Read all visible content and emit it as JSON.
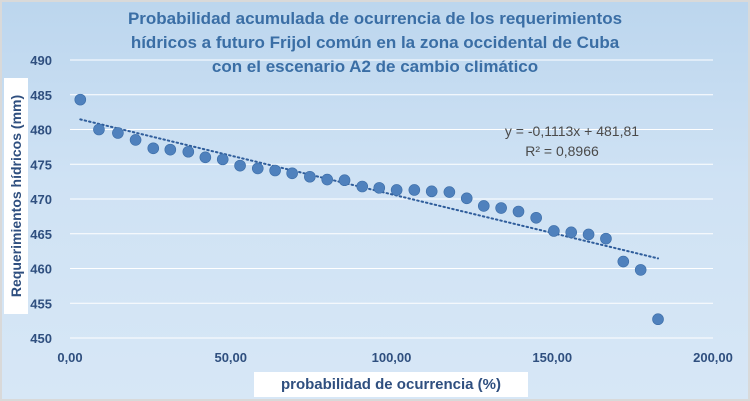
{
  "chart_data": {
    "type": "scatter",
    "title_lines": [
      "Probabilidad acumulada de ocurrencia de los requerimientos",
      "hídricos a futuro Frijol común en la zona occidental de Cuba",
      "con el escenario A2 de cambio climático"
    ],
    "xlabel": "probabilidad  de ocurrencia (%)",
    "ylabel": "Requerimientos hídricos (mm)",
    "xlim": [
      0,
      200
    ],
    "ylim": [
      450,
      490
    ],
    "x_ticks": [
      "0,00",
      "50,00",
      "100,00",
      "150,00",
      "200,00"
    ],
    "y_ticks": [
      "450",
      "455",
      "460",
      "465",
      "470",
      "475",
      "480",
      "485",
      "490"
    ],
    "grid": "horizontal",
    "points": [
      {
        "x": 3.2,
        "y": 484.3
      },
      {
        "x": 9.0,
        "y": 480.0
      },
      {
        "x": 14.9,
        "y": 479.5
      },
      {
        "x": 20.4,
        "y": 478.5
      },
      {
        "x": 25.9,
        "y": 477.3
      },
      {
        "x": 31.2,
        "y": 477.1
      },
      {
        "x": 36.8,
        "y": 476.8
      },
      {
        "x": 42.1,
        "y": 476.0
      },
      {
        "x": 47.5,
        "y": 475.7
      },
      {
        "x": 52.9,
        "y": 474.8
      },
      {
        "x": 58.4,
        "y": 474.4
      },
      {
        "x": 63.8,
        "y": 474.1
      },
      {
        "x": 69.1,
        "y": 473.7
      },
      {
        "x": 74.6,
        "y": 473.2
      },
      {
        "x": 80.0,
        "y": 472.8
      },
      {
        "x": 85.4,
        "y": 472.7
      },
      {
        "x": 90.9,
        "y": 471.8
      },
      {
        "x": 96.2,
        "y": 471.6
      },
      {
        "x": 101.6,
        "y": 471.3
      },
      {
        "x": 107.1,
        "y": 471.3
      },
      {
        "x": 112.5,
        "y": 471.1
      },
      {
        "x": 118.0,
        "y": 471.0
      },
      {
        "x": 123.4,
        "y": 470.1
      },
      {
        "x": 128.7,
        "y": 469.0
      },
      {
        "x": 134.1,
        "y": 468.7
      },
      {
        "x": 139.5,
        "y": 468.2
      },
      {
        "x": 145.0,
        "y": 467.3
      },
      {
        "x": 150.5,
        "y": 465.4
      },
      {
        "x": 155.9,
        "y": 465.2
      },
      {
        "x": 161.3,
        "y": 464.9
      },
      {
        "x": 166.7,
        "y": 464.3
      },
      {
        "x": 172.1,
        "y": 461.0
      },
      {
        "x": 177.5,
        "y": 459.8
      },
      {
        "x": 182.9,
        "y": 452.7
      }
    ],
    "trendline": {
      "slope": -0.1113,
      "intercept": 481.81,
      "style": "dotted"
    },
    "annotations": {
      "equation": "y = -0,1113x + 481,81",
      "r_squared": "R² = 0,8966"
    },
    "colors": {
      "point": "#4f81bd",
      "trendline": "#2f5d9b",
      "gridline": "#ffffff",
      "title": "#3a6ea5",
      "axis_text": "#2f4f7f"
    }
  }
}
